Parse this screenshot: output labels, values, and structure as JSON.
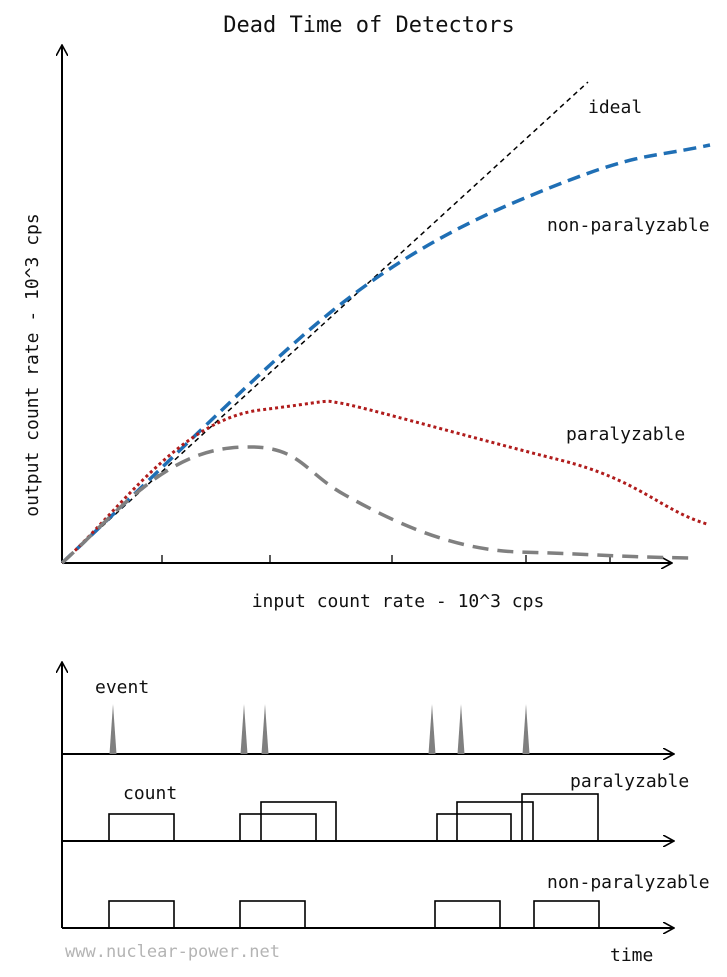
{
  "title": "Dead Time of Detectors",
  "top_chart": {
    "xlabel": "input count rate - 10^3 cps",
    "ylabel": "output count rate - 10^3 cps",
    "curves": [
      {
        "key": "ideal",
        "label": "ideal",
        "color": "#000000",
        "style": "dashed"
      },
      {
        "key": "nonpar",
        "label": "non-paralyzable",
        "color": "#1f6fb5",
        "style": "dashed"
      },
      {
        "key": "par",
        "label": "paralyzable",
        "color": "#b01c1c",
        "style": "dotted"
      },
      {
        "key": "gray",
        "label": "",
        "color": "#808080",
        "style": "dashed"
      }
    ]
  },
  "timeline": {
    "event_label": "event",
    "count_label": "count",
    "paralyzable_label": "paralyzable",
    "nonparalyzable_label": "non-paralyzable",
    "time_label": "time",
    "event_color": "#808080"
  },
  "watermark": "www.nuclear-power.net"
}
